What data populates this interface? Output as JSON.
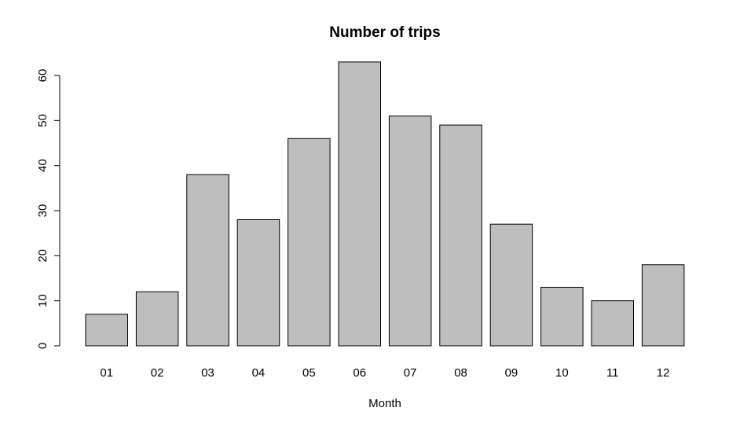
{
  "chart_data": {
    "type": "bar",
    "title": "Number of trips",
    "xlabel": "Month",
    "ylabel": "",
    "categories": [
      "01",
      "02",
      "03",
      "04",
      "05",
      "06",
      "07",
      "08",
      "09",
      "10",
      "11",
      "12"
    ],
    "values": [
      7,
      12,
      38,
      28,
      46,
      63,
      51,
      49,
      27,
      13,
      10,
      18
    ],
    "ylim": [
      0,
      60
    ],
    "yticks": [
      "0",
      "10",
      "20",
      "30",
      "40",
      "50",
      "60"
    ],
    "grid": false,
    "colors": {
      "bar_fill": "#bebebe",
      "bar_stroke": "#000000",
      "axis": "#000000"
    }
  }
}
